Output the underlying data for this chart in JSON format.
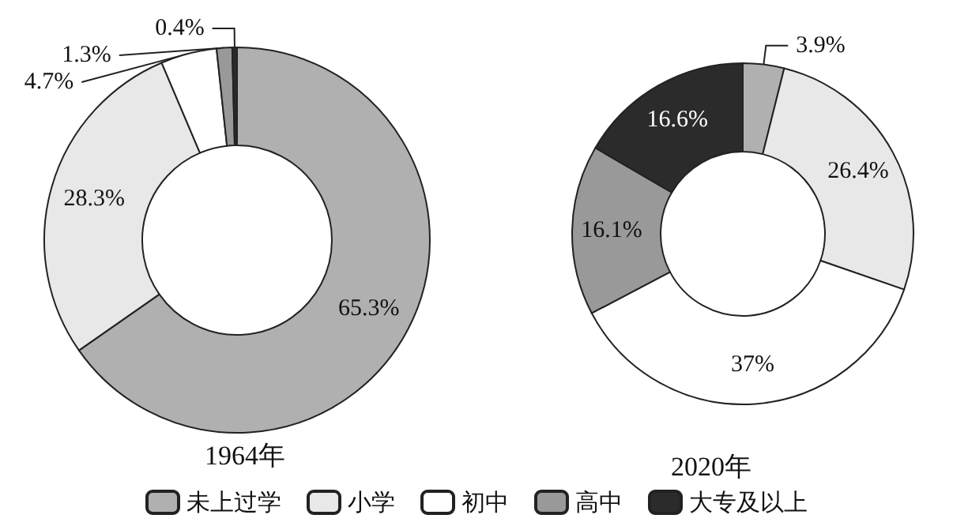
{
  "chart_data": {
    "type": "donut",
    "categories": [
      "未上过学",
      "小学",
      "初中",
      "高中",
      "大专及以上"
    ],
    "colors": [
      "#b0b0b0",
      "#e8e8e8",
      "#ffffff",
      "#999999",
      "#2b2b2b"
    ],
    "legend": "bottom",
    "series": [
      {
        "name": "1964年",
        "values": [
          65.3,
          28.3,
          4.7,
          1.3,
          0.4
        ],
        "value_labels": [
          "65.3%",
          "28.3%",
          "4.7%",
          "1.3%",
          "0.4%"
        ]
      },
      {
        "name": "2020年",
        "values": [
          3.9,
          26.4,
          37,
          16.1,
          16.6
        ],
        "value_labels": [
          "3.9%",
          "26.4%",
          "37%",
          "16.1%",
          "16.6%"
        ]
      }
    ]
  }
}
